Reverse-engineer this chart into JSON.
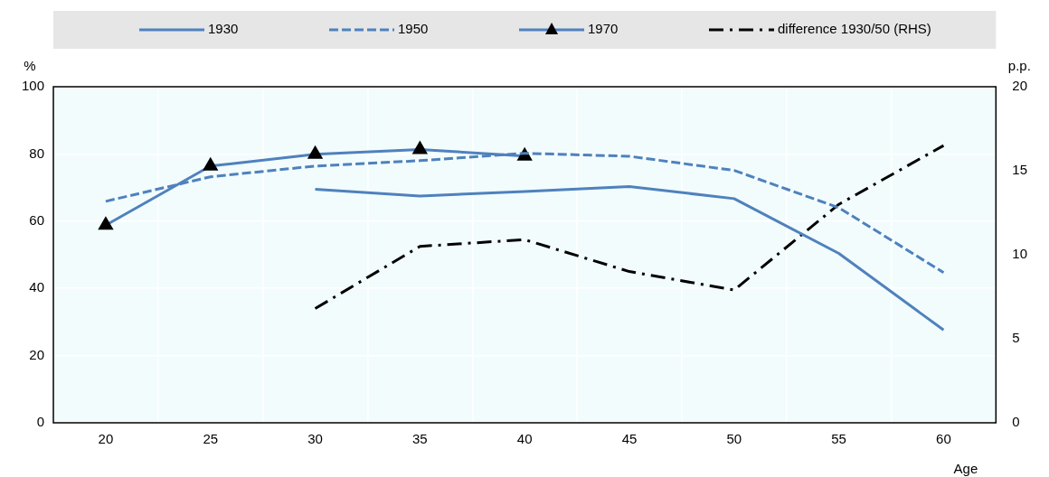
{
  "chart_data": {
    "type": "line",
    "xlabel": "Age",
    "ylabel": "%",
    "y2label": "p.p.",
    "categories": [
      "20",
      "25",
      "30",
      "35",
      "40",
      "45",
      "50",
      "55",
      "60"
    ],
    "series": [
      {
        "name": "1930",
        "color": "#4f81bd",
        "line_style": "solid",
        "marker": "none",
        "values": [
          null,
          null,
          69.5,
          67.5,
          68.8,
          70.3,
          66.7,
          50.4,
          27.6
        ]
      },
      {
        "name": "1950",
        "color": "#4f81bd",
        "line_style": "dashed",
        "marker": "none",
        "values": [
          65.9,
          73.2,
          76.4,
          78.0,
          80.2,
          79.3,
          75.1,
          64.0,
          44.7
        ]
      },
      {
        "name": "1970",
        "color": "#4f81bd",
        "line_style": "solid",
        "marker": "triangle",
        "values": [
          58.8,
          76.4,
          79.9,
          81.3,
          79.4,
          null,
          null,
          null,
          null
        ]
      },
      {
        "name": "difference 1930/50 (RHS)",
        "color": "#000000",
        "line_style": "dashdot",
        "marker": "none",
        "axis": "y2",
        "values": [
          null,
          null,
          6.8,
          10.5,
          10.9,
          9.0,
          7.9,
          13.0,
          16.5
        ]
      }
    ],
    "ylim": [
      0,
      100
    ],
    "yticks": [
      0,
      20,
      40,
      60,
      80,
      100
    ],
    "y2lim": [
      0,
      20
    ],
    "y2ticks": [
      0,
      5,
      10,
      15,
      20
    ],
    "grid": true,
    "legend": "top"
  }
}
